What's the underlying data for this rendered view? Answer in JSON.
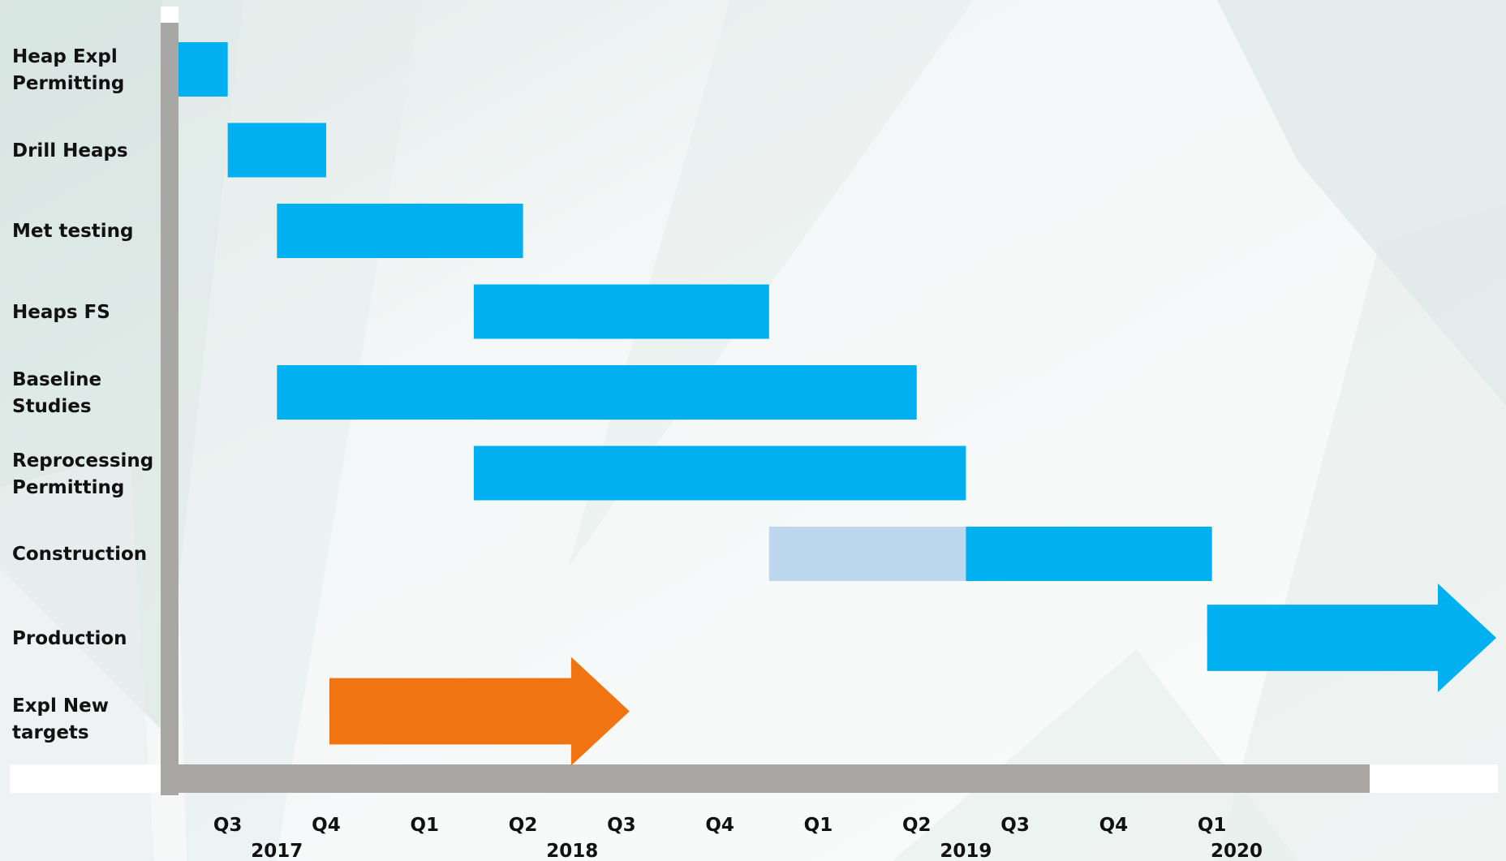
{
  "chart_data": {
    "type": "gantt",
    "title": "",
    "xlabel": "",
    "ylabel": "",
    "x_unit": "quarter",
    "x_start": "2017 Q3",
    "tasks": [
      {
        "name": "Heap Expl\nPermitting",
        "start": 0.0,
        "end": 0.5,
        "color": "#00b0f0"
      },
      {
        "name": "Drill Heaps",
        "start": 0.5,
        "end": 1.5,
        "color": "#00b0f0"
      },
      {
        "name": "Met testing",
        "start": 1.0,
        "end": 3.5,
        "color": "#00b0f0"
      },
      {
        "name": "Heaps FS",
        "start": 3.0,
        "end": 6.0,
        "color": "#00b0f0"
      },
      {
        "name": "Baseline\nStudies",
        "start": 1.0,
        "end": 7.5,
        "color": "#00b0f0"
      },
      {
        "name": "Reprocessing\nPermitting",
        "start": 3.0,
        "end": 8.0,
        "color": "#00b0f0"
      },
      {
        "name": "Construction",
        "segments": [
          {
            "start": 6.0,
            "end": 8.0,
            "color": "#bdd7ee"
          },
          {
            "start": 8.0,
            "end": 10.5,
            "color": "#00b0f0"
          }
        ]
      },
      {
        "name": "Production",
        "start": 10.5,
        "end": 13.5,
        "arrow": true,
        "color": "#00b0f0"
      },
      {
        "name": "Expl New\ntargets",
        "start": 1.5,
        "end": 4.5,
        "arrow": true,
        "color": "#f07512"
      }
    ],
    "x_ticks": [
      {
        "label": "Q3",
        "pos": 0.5
      },
      {
        "label": "Q4",
        "pos": 1.5
      },
      {
        "label": "Q1",
        "pos": 2.5
      },
      {
        "label": "Q2",
        "pos": 3.5
      },
      {
        "label": "Q3",
        "pos": 4.5
      },
      {
        "label": "Q4",
        "pos": 5.5
      },
      {
        "label": "Q1",
        "pos": 6.5
      },
      {
        "label": "Q2",
        "pos": 7.5
      },
      {
        "label": "Q3",
        "pos": 8.5
      },
      {
        "label": "Q4",
        "pos": 9.5
      },
      {
        "label": "Q1",
        "pos": 10.5
      }
    ],
    "year_labels": [
      {
        "label": "2017",
        "pos": 1.0
      },
      {
        "label": "2018",
        "pos": 4.0
      },
      {
        "label": "2019",
        "pos": 8.0
      },
      {
        "label": "2020",
        "pos": 10.75
      }
    ],
    "axis_color": "#a9a6a6"
  }
}
